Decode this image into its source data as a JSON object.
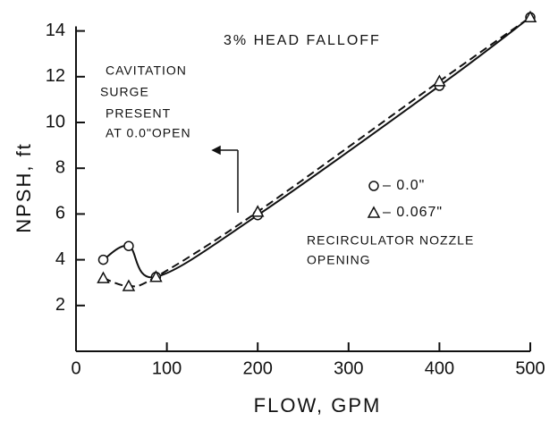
{
  "chart_data": {
    "type": "line",
    "annotations": [
      "3% HEAD FALLOFF",
      "CAVITATION",
      "SURGE",
      "PRESENT",
      "AT 0.0\"OPEN",
      "RECIRCULATOR NOZZLE",
      "OPENING"
    ],
    "x_label": "FLOW, GPM",
    "y_label": "NPSH, ft",
    "series": [
      {
        "name": "0.0\"",
        "color": "#111111",
        "marker": "circle",
        "dash": false,
        "x": [
          30,
          58,
          88,
          200,
          400,
          500
        ],
        "values": [
          4.0,
          4.6,
          3.25,
          5.95,
          11.6,
          14.6
        ]
      },
      {
        "name": "0.067\"",
        "color": "#111111",
        "marker": "triangle",
        "dash": true,
        "x": [
          30,
          58,
          88,
          200,
          400,
          500
        ],
        "values": [
          3.2,
          2.85,
          3.25,
          6.1,
          11.8,
          14.6
        ]
      }
    ],
    "xlim": [
      0,
      500
    ],
    "xticks": [
      0,
      100,
      200,
      300,
      400,
      500
    ],
    "ylim": [
      0,
      14.2
    ],
    "yticks": [
      2,
      4,
      6,
      8,
      10,
      12,
      14
    ],
    "grid": false
  }
}
